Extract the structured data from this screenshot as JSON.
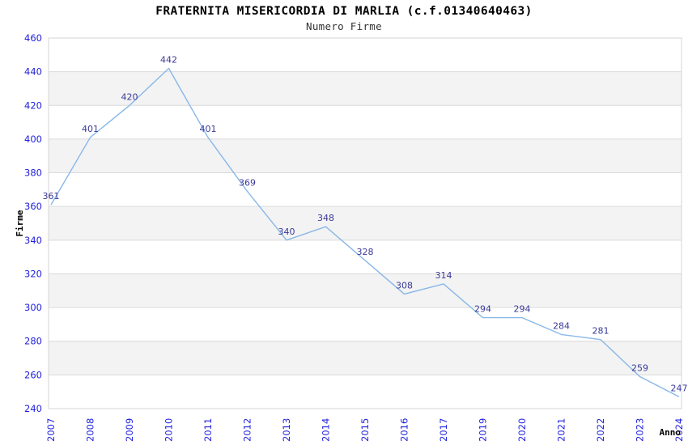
{
  "header": {
    "title": "FRATERNITA MISERICORDIA DI MARLIA (c.f.01340640463)",
    "subtitle": "Numero Firme"
  },
  "chart_data": {
    "type": "line",
    "title": "FRATERNITA MISERICORDIA DI MARLIA (c.f.01340640463)",
    "subtitle": "Numero Firme",
    "xlabel": "Anno",
    "ylabel": "Firme",
    "categories": [
      "2007",
      "2008",
      "2009",
      "2010",
      "2011",
      "2012",
      "2013",
      "2014",
      "2015",
      "2016",
      "2017",
      "2019",
      "2020",
      "2021",
      "2022",
      "2023",
      "2024"
    ],
    "values": [
      361,
      401,
      420,
      442,
      401,
      369,
      340,
      348,
      328,
      308,
      314,
      294,
      294,
      284,
      281,
      259,
      247
    ],
    "ylim": [
      240,
      460
    ],
    "ytick_step": 20,
    "grid": true,
    "alternating_bands": true,
    "data_labels_visible": true,
    "legend": "none",
    "colors": {
      "line": "#88b8e8",
      "data_label": "#3a3a99",
      "tick_label": "#2222dd",
      "band_fill": "#f3f3f3",
      "gridline": "#dadada",
      "plot_border": "#d4d4d4",
      "title": "#000000",
      "subtitle": "#333333",
      "axis_title": "#000000",
      "background": "#ffffff"
    }
  }
}
